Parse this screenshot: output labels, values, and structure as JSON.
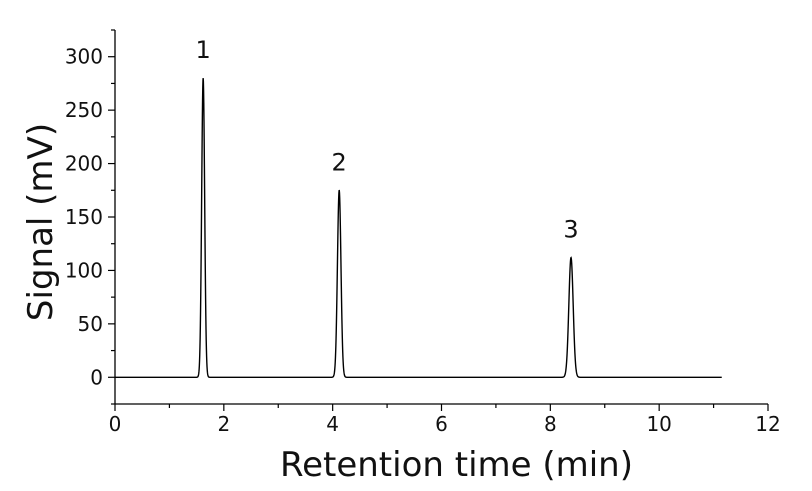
{
  "chart_data": {
    "type": "line",
    "xlabel": "Retention time (min)",
    "ylabel": "Signal (mV)",
    "xlim": [
      0,
      12
    ],
    "ylim": [
      -25,
      325
    ],
    "xticks": [
      0,
      2,
      4,
      6,
      8,
      10,
      12
    ],
    "xtick_labels": [
      "0",
      "2",
      "4",
      "6",
      "8",
      "10",
      "12"
    ],
    "yticks": [
      0,
      50,
      100,
      150,
      200,
      250,
      300
    ],
    "ytick_labels": [
      "0",
      "50",
      "100",
      "150",
      "200",
      "250",
      "300"
    ],
    "grid": false,
    "legend": "none",
    "line_color": "#000000",
    "trace_range": [
      0,
      11.15
    ],
    "peaks": [
      {
        "label": "1",
        "time": 1.62,
        "height": 280,
        "width_min": 0.055
      },
      {
        "label": "2",
        "time": 4.12,
        "height": 175,
        "width_min": 0.065
      },
      {
        "label": "3",
        "time": 8.38,
        "height": 112,
        "width_min": 0.08
      }
    ]
  }
}
